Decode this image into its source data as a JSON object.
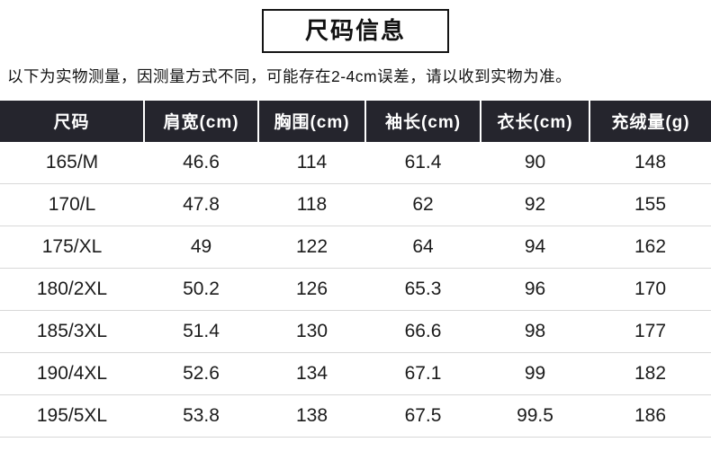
{
  "page": {
    "title": "尺码信息",
    "note": "以下为实物测量，因测量方式不同，可能存在2-4cm误差，请以收到实物为准。"
  },
  "table": {
    "headers": [
      "尺码",
      "肩宽(cm)",
      "胸围(cm)",
      "袖长(cm)",
      "衣长(cm)",
      "充绒量(g)"
    ],
    "rows": [
      [
        "165/M",
        "46.6",
        "114",
        "61.4",
        "90",
        "148"
      ],
      [
        "170/L",
        "47.8",
        "118",
        "62",
        "92",
        "155"
      ],
      [
        "175/XL",
        "49",
        "122",
        "64",
        "94",
        "162"
      ],
      [
        "180/2XL",
        "50.2",
        "126",
        "65.3",
        "96",
        "170"
      ],
      [
        "185/3XL",
        "51.4",
        "130",
        "66.6",
        "98",
        "177"
      ],
      [
        "190/4XL",
        "52.6",
        "134",
        "67.1",
        "99",
        "182"
      ],
      [
        "195/5XL",
        "53.8",
        "138",
        "67.5",
        "99.5",
        "186"
      ]
    ]
  },
  "colors": {
    "header_bg": "#25252d",
    "header_text": "#ffffff",
    "body_text": "#1b1b1b",
    "row_divider": "#d8d8d8",
    "title_border": "#141414"
  }
}
